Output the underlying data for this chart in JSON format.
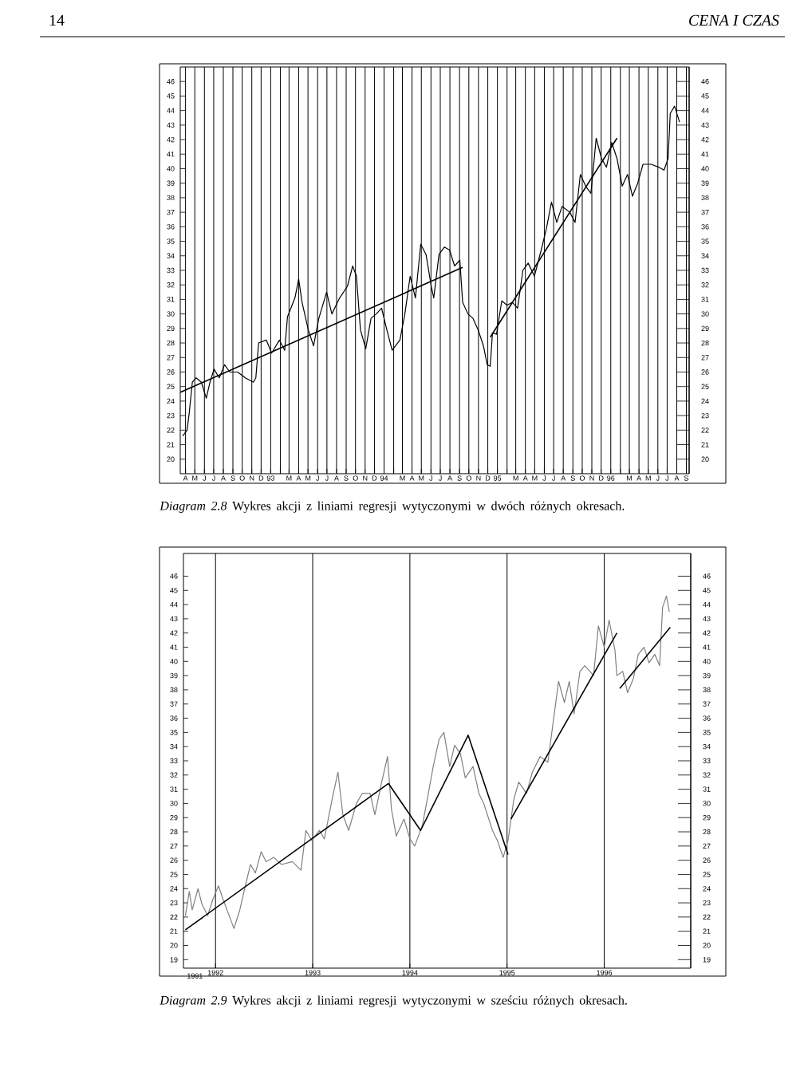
{
  "chart_data": [
    {
      "type": "line",
      "annotations": [
        "14",
        "CENA I CZAS",
        "*Diagram 2.8* Wykres akcji z liniami regresji wytyczonymi w dwóch różnych okresach."
      ],
      "xlim": [
        "1992-03-15",
        "1996-09-10"
      ],
      "ylim": [
        19,
        47
      ],
      "y2lim": [
        19,
        47
      ],
      "grid": "x",
      "xticks": [
        {
          "value": "1992-04-01",
          "label": "A"
        },
        {
          "value": "1992-05-01",
          "label": "M"
        },
        {
          "value": "1992-06-01",
          "label": "J"
        },
        {
          "value": "1992-07-01",
          "label": "J"
        },
        {
          "value": "1992-08-01",
          "label": "A"
        },
        {
          "value": "1992-09-01",
          "label": "S"
        },
        {
          "value": "1992-10-01",
          "label": "O"
        },
        {
          "value": "1992-11-01",
          "label": "N"
        },
        {
          "value": "1992-12-01",
          "label": "D"
        },
        {
          "value": "1993-01-01",
          "label": "93"
        },
        {
          "value": "1993-02-01",
          "label": null
        },
        {
          "value": "1993-03-01",
          "label": "M"
        },
        {
          "value": "1993-04-01",
          "label": "A"
        },
        {
          "value": "1993-05-01",
          "label": "M"
        },
        {
          "value": "1993-06-01",
          "label": "J"
        },
        {
          "value": "1993-07-01",
          "label": "J"
        },
        {
          "value": "1993-08-01",
          "label": "A"
        },
        {
          "value": "1993-09-01",
          "label": "S"
        },
        {
          "value": "1993-10-01",
          "label": "O"
        },
        {
          "value": "1993-11-01",
          "label": "N"
        },
        {
          "value": "1993-12-01",
          "label": "D"
        },
        {
          "value": "1994-01-01",
          "label": "94"
        },
        {
          "value": "1994-02-01",
          "label": null
        },
        {
          "value": "1994-03-01",
          "label": "M"
        },
        {
          "value": "1994-04-01",
          "label": "A"
        },
        {
          "value": "1994-05-01",
          "label": "M"
        },
        {
          "value": "1994-06-01",
          "label": "J"
        },
        {
          "value": "1994-07-01",
          "label": "J"
        },
        {
          "value": "1994-08-01",
          "label": "A"
        },
        {
          "value": "1994-09-01",
          "label": "S"
        },
        {
          "value": "1994-10-01",
          "label": "O"
        },
        {
          "value": "1994-11-01",
          "label": "N"
        },
        {
          "value": "1994-12-01",
          "label": "D"
        },
        {
          "value": "1995-01-01",
          "label": "95"
        },
        {
          "value": "1995-02-01",
          "label": null
        },
        {
          "value": "1995-03-01",
          "label": "M"
        },
        {
          "value": "1995-04-01",
          "label": "A"
        },
        {
          "value": "1995-05-01",
          "label": "M"
        },
        {
          "value": "1995-06-01",
          "label": "J"
        },
        {
          "value": "1995-07-01",
          "label": "J"
        },
        {
          "value": "1995-08-01",
          "label": "A"
        },
        {
          "value": "1995-09-01",
          "label": "S"
        },
        {
          "value": "1995-10-01",
          "label": "O"
        },
        {
          "value": "1995-11-01",
          "label": "N"
        },
        {
          "value": "1995-12-01",
          "label": "D"
        },
        {
          "value": "1996-01-01",
          "label": "96"
        },
        {
          "value": "1996-02-01",
          "label": null
        },
        {
          "value": "1996-03-01",
          "label": "M"
        },
        {
          "value": "1996-04-01",
          "label": "A"
        },
        {
          "value": "1996-05-01",
          "label": "M"
        },
        {
          "value": "1996-06-01",
          "label": "J"
        },
        {
          "value": "1996-07-01",
          "label": "J"
        },
        {
          "value": "1996-08-01",
          "label": "A"
        },
        {
          "value": "1996-09-01",
          "label": "S"
        }
      ],
      "yticks": [
        20,
        21,
        22,
        23,
        24,
        25,
        26,
        27,
        28,
        29,
        30,
        31,
        32,
        33,
        34,
        35,
        36,
        37,
        38,
        39,
        40,
        41,
        42,
        43,
        44,
        45,
        46
      ],
      "y2ticks": [
        20,
        21,
        22,
        23,
        24,
        25,
        26,
        27,
        28,
        29,
        30,
        31,
        32,
        33,
        34,
        35,
        36,
        37,
        38,
        39,
        40,
        41,
        42,
        43,
        44,
        45,
        46
      ],
      "series": [
        {
          "color": "#000000",
          "x": [
            "1992-03-23",
            "1992-04-06",
            "1992-04-13",
            "1992-04-23",
            "1992-05-05",
            "1992-05-22",
            "1992-06-07",
            "1992-06-19",
            "1992-07-02",
            "1992-07-19",
            "1992-08-05",
            "1992-08-22",
            "1992-09-16",
            "1992-10-11",
            "1992-11-06",
            "1992-11-14",
            "1992-11-23",
            "1992-12-18",
            "1993-01-04",
            "1993-01-29",
            "1993-02-15",
            "1993-02-24",
            "1993-03-20",
            "1993-04-01",
            "1993-04-12",
            "1993-05-02",
            "1993-05-19",
            "1993-06-05",
            "1993-06-30",
            "1993-07-17",
            "1993-08-11",
            "1993-09-05",
            "1993-09-22",
            "1993-10-04",
            "1993-10-17",
            "1993-11-03",
            "1993-11-20",
            "1993-12-07",
            "1993-12-24",
            "1994-01-10",
            "1994-01-27",
            "1994-02-21",
            "1994-03-09",
            "1994-03-26",
            "1994-04-12",
            "1994-04-29",
            "1994-05-16",
            "1994-06-02",
            "1994-06-10",
            "1994-06-27",
            "1994-07-14",
            "1994-07-31",
            "1994-08-16",
            "1994-09-02",
            "1994-09-11",
            "1994-09-28",
            "1994-10-14",
            "1994-10-31",
            "1994-11-17",
            "1994-11-29",
            "1994-12-09",
            "1994-12-16",
            "1994-12-29",
            "1995-01-15",
            "1995-02-01",
            "1995-02-18",
            "1995-03-07",
            "1995-03-24",
            "1995-04-10",
            "1995-04-30",
            "1995-05-22",
            "1995-06-08",
            "1995-06-24",
            "1995-07-11",
            "1995-07-28",
            "1995-08-22",
            "1995-09-08",
            "1995-09-25",
            "1995-10-12",
            "1995-10-29",
            "1995-11-15",
            "1995-12-02",
            "1995-12-18",
            "1996-01-04",
            "1996-01-21",
            "1996-02-07",
            "1996-02-24",
            "1996-03-11",
            "1996-03-28",
            "1996-04-14",
            "1996-05-10",
            "1996-06-04",
            "1996-06-21",
            "1996-07-04",
            "1996-07-11",
            "1996-07-25",
            "1996-08-10"
          ],
          "values": [
            21.6,
            22.0,
            23.2,
            25.3,
            25.6,
            25.3,
            24.2,
            25.3,
            26.2,
            25.6,
            26.5,
            26.0,
            26.0,
            25.6,
            25.3,
            25.6,
            28.0,
            28.2,
            27.3,
            28.2,
            27.5,
            29.8,
            31.1,
            32.4,
            30.8,
            28.9,
            27.8,
            29.7,
            31.5,
            30.0,
            31.1,
            31.9,
            33.3,
            32.6,
            28.9,
            27.6,
            29.7,
            30.0,
            30.4,
            28.9,
            27.5,
            28.2,
            30.0,
            32.6,
            31.1,
            34.8,
            34.1,
            31.9,
            31.1,
            34.1,
            34.6,
            34.4,
            33.3,
            33.7,
            30.8,
            30.0,
            29.7,
            28.9,
            27.8,
            26.5,
            26.4,
            28.7,
            28.6,
            30.9,
            30.6,
            30.8,
            30.4,
            33.0,
            33.5,
            32.6,
            34.4,
            35.9,
            37.7,
            36.3,
            37.4,
            37.0,
            36.3,
            39.6,
            38.8,
            38.3,
            42.1,
            40.7,
            40.1,
            41.8,
            40.7,
            38.8,
            39.6,
            38.1,
            39.0,
            40.3,
            40.3,
            40.1,
            39.9,
            40.7,
            43.8,
            44.3,
            43.2
          ]
        },
        {
          "color": "#000000",
          "x": [
            "1992-03-15",
            "1994-09-11"
          ],
          "values": [
            24.6,
            33.2
          ]
        },
        {
          "color": "#000000",
          "x": [
            "1994-12-09",
            "1996-01-21"
          ],
          "values": [
            28.4,
            42.1
          ]
        }
      ]
    },
    {
      "type": "line",
      "annotations": [
        "*Diagram 2.9* Wykres akcji z liniami regresji wytyczonymi w sześciu różnych okresach.",
        "1991"
      ],
      "xlim": [
        1991.67,
        1996.89
      ],
      "ylim": [
        18.4,
        47.6
      ],
      "y2lim": [
        18.4,
        47.6
      ],
      "grid": "x",
      "xticks": [
        1992,
        1993,
        1994,
        1995,
        1996
      ],
      "yticks": [
        19,
        20,
        21,
        22,
        23,
        24,
        25,
        26,
        27,
        28,
        29,
        30,
        31,
        32,
        33,
        34,
        35,
        36,
        37,
        38,
        39,
        40,
        41,
        42,
        43,
        44,
        45,
        46
      ],
      "y2ticks": [
        19,
        20,
        21,
        22,
        23,
        24,
        25,
        26,
        27,
        28,
        29,
        30,
        31,
        32,
        33,
        34,
        35,
        36,
        37,
        38,
        39,
        40,
        41,
        42,
        43,
        44,
        45,
        46
      ],
      "series": [
        {
          "color": "#808080",
          "x": [
            1991.69,
            1991.73,
            1991.76,
            1991.82,
            1991.86,
            1991.92,
            1991.97,
            1992.03,
            1992.08,
            1992.14,
            1992.19,
            1992.25,
            1992.3,
            1992.36,
            1992.41,
            1992.47,
            1992.52,
            1992.6,
            1992.68,
            1992.79,
            1992.88,
            1992.93,
            1992.99,
            1993.07,
            1993.12,
            1993.2,
            1993.26,
            1993.31,
            1993.37,
            1993.45,
            1993.51,
            1993.59,
            1993.64,
            1993.71,
            1993.77,
            1993.81,
            1993.86,
            1993.94,
            1994.0,
            1994.05,
            1994.13,
            1994.19,
            1994.24,
            1994.3,
            1994.35,
            1994.41,
            1994.46,
            1994.52,
            1994.57,
            1994.65,
            1994.71,
            1994.76,
            1994.85,
            1994.9,
            1994.96,
            1995.01,
            1995.07,
            1995.12,
            1995.2,
            1995.26,
            1995.34,
            1995.42,
            1995.48,
            1995.53,
            1995.59,
            1995.64,
            1995.69,
            1995.75,
            1995.8,
            1995.89,
            1995.94,
            1996.0,
            1996.05,
            1996.11,
            1996.13,
            1996.19,
            1996.24,
            1996.3,
            1996.35,
            1996.41,
            1996.46,
            1996.52,
            1996.57,
            1996.6,
            1996.64,
            1996.67
          ],
          "values": [
            22.1,
            23.8,
            22.5,
            24.0,
            22.9,
            22.1,
            23.2,
            24.2,
            23.2,
            22.1,
            21.2,
            22.5,
            24.0,
            25.7,
            25.1,
            26.6,
            25.9,
            26.2,
            25.7,
            25.9,
            25.3,
            28.1,
            27.4,
            28.1,
            27.5,
            30.3,
            32.2,
            29.2,
            28.1,
            30.0,
            30.7,
            30.7,
            29.2,
            31.5,
            33.3,
            29.6,
            27.7,
            28.9,
            27.5,
            27.0,
            28.5,
            30.7,
            32.6,
            34.5,
            35.0,
            32.6,
            34.1,
            33.5,
            31.8,
            32.6,
            30.7,
            30.0,
            28.1,
            27.4,
            26.2,
            27.4,
            30.3,
            31.5,
            30.7,
            32.2,
            33.3,
            32.9,
            36.0,
            38.6,
            37.1,
            38.6,
            36.3,
            39.3,
            39.7,
            39.0,
            42.5,
            41.0,
            42.9,
            40.8,
            39.0,
            39.3,
            37.8,
            38.8,
            40.5,
            41.0,
            39.9,
            40.5,
            39.7,
            43.8,
            44.6,
            43.5
          ]
        },
        {
          "color": "#000000",
          "x": [
            1991.69,
            1993.78,
            1994.11,
            1994.6,
            1995.01
          ],
          "values": [
            21.1,
            31.4,
            28.1,
            34.8,
            26.4
          ]
        },
        {
          "color": "#000000",
          "x": [
            1995.04,
            1996.13
          ],
          "values": [
            28.9,
            42.0
          ]
        },
        {
          "color": "#000000",
          "x": [
            1996.16,
            1996.68
          ],
          "values": [
            38.1,
            42.4
          ]
        }
      ]
    }
  ]
}
